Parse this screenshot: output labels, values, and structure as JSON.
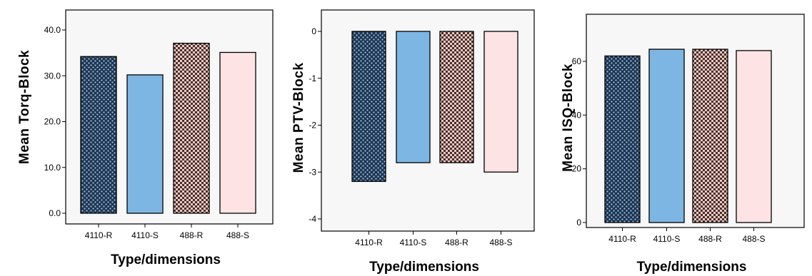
{
  "colors": {
    "bar_4110_R": "#1f3550",
    "bar_4110_S": "#7db6e2",
    "bar_488_R": "#4a2e2a",
    "bar_488_S": "#fde3e3"
  },
  "chart_data": [
    {
      "type": "bar",
      "categories": [
        "4110-R",
        "4110-S",
        "488-R",
        "488-S"
      ],
      "values": [
        34.2,
        30.2,
        37.1,
        35.1
      ],
      "ylabel": "Mean Torq-Block",
      "xlabel": "Type/dimensions",
      "ylim": [
        0,
        45
      ],
      "yticks": [
        0,
        10,
        20,
        30,
        40
      ],
      "ytick_labels": [
        "0.0",
        "10.0",
        "20.0",
        "30.0",
        "40.0"
      ],
      "patterns": [
        "dark-dots",
        "solid",
        "brown-check",
        "solid"
      ]
    },
    {
      "type": "bar",
      "categories": [
        "4110-R",
        "4110-S",
        "488-R",
        "488-S"
      ],
      "values": [
        -3.2,
        -2.8,
        -2.8,
        -3.0
      ],
      "ylabel": "Mean PTV-Block",
      "xlabel": "Type/dimensions",
      "ylim": [
        -4,
        0.1
      ],
      "yticks": [
        0,
        -1,
        -2,
        -3,
        -4
      ],
      "ytick_labels": [
        "0",
        "-1",
        "-2",
        "-3",
        "-4"
      ],
      "patterns": [
        "dark-dots",
        "solid",
        "brown-check",
        "solid"
      ]
    },
    {
      "type": "bar",
      "categories": [
        "4110-R",
        "4110-S",
        "488-R",
        "488-S"
      ],
      "values": [
        62,
        64.5,
        64.5,
        64
      ],
      "ylabel": "Mean ISQ-Block",
      "xlabel": "Type/dimensions",
      "ylim": [
        0,
        78
      ],
      "yticks": [
        0,
        20,
        40,
        60
      ],
      "ytick_labels": [
        "0",
        "20",
        "40",
        "60"
      ],
      "patterns": [
        "dark-dots",
        "solid",
        "brown-check",
        "solid"
      ]
    }
  ]
}
